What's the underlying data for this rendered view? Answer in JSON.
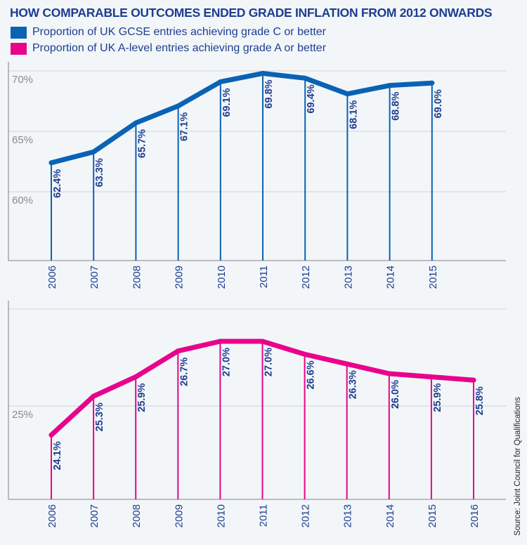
{
  "title": "HOW COMPARABLE OUTCOMES ENDED GRADE INFLATION FROM 2012 ONWARDS",
  "legend": [
    {
      "label": "Proportion of UK GCSE entries achieving grade C or better",
      "color": "#0a62b4"
    },
    {
      "label": "Proportion of UK A-level entries achieving grade A or better",
      "color": "#e8038c"
    }
  ],
  "source": "Source: Joint Council for Qualifications",
  "colors": {
    "label_text": "#1e3d8f",
    "tick_text": "#8a8a8a",
    "grid": "#d6dbe0",
    "axis": "#9a9a9a"
  },
  "chart_data": [
    {
      "type": "line",
      "name": "gcse",
      "series_name": "Proportion of UK GCSE entries achieving grade C or better",
      "color": "#0a62b4",
      "categories": [
        "2006",
        "2007",
        "2008",
        "2009",
        "2010",
        "2011",
        "2012",
        "2013",
        "2014",
        "2015"
      ],
      "values": [
        62.4,
        63.3,
        65.7,
        67.1,
        69.1,
        69.8,
        69.4,
        68.1,
        68.8,
        69.0
      ],
      "data_labels": [
        "62.4%",
        "63.3%",
        "65.7%",
        "67.1%",
        "69.1%",
        "69.8%",
        "69.4%",
        "68.1%",
        "68.8%",
        "69.0%"
      ],
      "yticks": [
        {
          "value": 70,
          "label": "70%"
        },
        {
          "value": 65,
          "label": "65%"
        },
        {
          "value": 60,
          "label": "60%"
        }
      ],
      "ylim": [
        54.3,
        70.8
      ],
      "grid": true
    },
    {
      "type": "line",
      "name": "alevel",
      "series_name": "Proportion of UK A-level entries achieving grade A or better",
      "color": "#e8038c",
      "categories": [
        "2006",
        "2007",
        "2008",
        "2009",
        "2010",
        "2011",
        "2012",
        "2013",
        "2014",
        "2015",
        "2016"
      ],
      "values": [
        24.1,
        25.3,
        25.9,
        26.7,
        27.0,
        27.0,
        26.6,
        26.3,
        26.0,
        25.9,
        25.8
      ],
      "data_labels": [
        "24.1%",
        "25.3%",
        "25.9%",
        "26.7%",
        "27.0%",
        "27.0%",
        "26.6%",
        "26.3%",
        "26.0%",
        "25.9%",
        "25.8%"
      ],
      "yticks": [
        {
          "value": 28,
          "label": ""
        },
        {
          "value": 25,
          "label": "25%"
        }
      ],
      "ylim": [
        22.0,
        28.2
      ],
      "grid": true
    }
  ]
}
